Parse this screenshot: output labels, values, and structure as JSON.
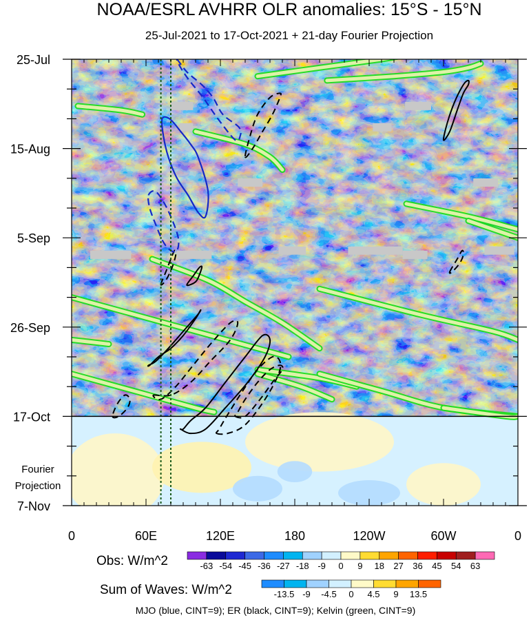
{
  "chart_data": {
    "type": "heatmap",
    "title": "NOAA/ESRL AVHRR OLR anomalies: 15°S - 15°N",
    "subtitle": "25-Jul-2021 to 17-Oct-2021 + 21-day Fourier Projection",
    "x_axis": {
      "ticks": [
        "0",
        "60E",
        "120E",
        "180",
        "120W",
        "60W",
        "0"
      ],
      "tick_lon": [
        0,
        60,
        120,
        180,
        240,
        300,
        360
      ],
      "range_deg": [
        0,
        360
      ]
    },
    "y_axis": {
      "ticks": [
        "25-Jul",
        "15-Aug",
        "5-Sep",
        "26-Sep",
        "17-Oct",
        "7-Nov"
      ],
      "tick_day": [
        0,
        21,
        42,
        63,
        84,
        105
      ],
      "range_days": [
        0,
        105
      ],
      "forecast_start_day": 84
    },
    "projection_label": [
      "Fourier",
      "Projection"
    ],
    "obs_legend": {
      "label": "Obs: W/m^2",
      "levels": [
        "-63",
        "-54",
        "-45",
        "-36",
        "-27",
        "-18",
        "-9",
        "0",
        "9",
        "18",
        "27",
        "36",
        "45",
        "54",
        "63"
      ],
      "colors": [
        "#8a2be2",
        "#0a0a9a",
        "#1e28d2",
        "#3c69e6",
        "#1e8cff",
        "#00b4f0",
        "#a0d2ff",
        "#d2f0ff",
        "#fffac8",
        "#ffdc32",
        "#ffa500",
        "#ff6400",
        "#ff1e00",
        "#c80000",
        "#a01e1e",
        "#ff69b4"
      ]
    },
    "waves_legend": {
      "label": "Sum of Waves: W/m^2",
      "levels": [
        "-13.5",
        "-9",
        "-4.5",
        "0",
        "4.5",
        "9",
        "13.5"
      ],
      "colors": [
        "#1e8cff",
        "#00b4f0",
        "#a0d2ff",
        "#d2f0ff",
        "#fffac8",
        "#ffdc32",
        "#ffa500",
        "#ff6400"
      ]
    },
    "wave_note": "MJO (blue, CINT=9); ER (black, CINT=9); Kelvin (green, CINT=9)",
    "wave_colors": {
      "mjo": "#1428c8",
      "er": "#000000",
      "kelvin": "#1edc1e",
      "missing": "#c8c8c8"
    },
    "reference_longitudes": [
      72,
      80
    ],
    "mjo_contours": [
      {
        "lon": [
          85,
          93,
          105,
          114,
          122,
          135,
          136,
          132,
          118,
          106,
          95,
          88,
          85
        ],
        "day": [
          0,
          3,
          6,
          9,
          13,
          16,
          18,
          19,
          14,
          9,
          5,
          2,
          0
        ],
        "sign": "neg"
      },
      {
        "lon": [
          73,
          79,
          88,
          96,
          102,
          110,
          108,
          102,
          94,
          85,
          78,
          74,
          73
        ],
        "day": [
          14,
          14,
          17,
          20,
          23,
          31,
          37,
          36,
          32,
          28,
          23,
          18,
          14
        ],
        "sign": "neg"
      },
      {
        "lon": [
          62,
          67,
          73,
          80,
          86,
          85,
          80,
          74,
          68,
          63,
          62
        ],
        "day": [
          32,
          31,
          33,
          37,
          42,
          45,
          45,
          43,
          39,
          35,
          32
        ],
        "sign": "neg"
      }
    ],
    "er_contours": [
      {
        "lon": [
          140,
          146,
          154,
          162,
          168,
          168,
          160,
          150,
          144,
          140
        ],
        "day": [
          23,
          21,
          17,
          13,
          9,
          8,
          9,
          13,
          18,
          23
        ],
        "sign": "pos"
      },
      {
        "lon": [
          300,
          305,
          311,
          316,
          320,
          320,
          316,
          309,
          303,
          300
        ],
        "day": [
          19,
          17,
          12,
          8,
          6,
          5,
          6,
          10,
          15,
          19
        ],
        "sign": "neg"
      },
      {
        "lon": [
          305,
          311,
          315,
          316,
          313,
          307,
          305
        ],
        "day": [
          50,
          47,
          45,
          46,
          48,
          50,
          50
        ],
        "sign": "pos"
      },
      {
        "lon": [
          72,
          76,
          80,
          83,
          84,
          81,
          76,
          72
        ],
        "day": [
          53,
          50,
          47,
          45,
          46,
          49,
          52,
          53
        ],
        "sign": "pos"
      },
      {
        "lon": [
          93,
          98,
          103,
          105,
          101,
          96,
          93
        ],
        "day": [
          53,
          51,
          49,
          49,
          52,
          53,
          53
        ],
        "sign": "neg"
      },
      {
        "lon": [
          62,
          68,
          78,
          90,
          102,
          104,
          100,
          90,
          80,
          70,
          63,
          62
        ],
        "day": [
          72,
          71,
          68,
          64,
          60,
          59,
          61,
          65,
          68,
          70,
          72,
          72
        ],
        "sign": "neg"
      },
      {
        "lon": [
          66,
          80,
          96,
          112,
          128,
          134,
          128,
          112,
          98,
          84,
          72,
          66
        ],
        "day": [
          79,
          79,
          76,
          71,
          66,
          62,
          62,
          67,
          72,
          77,
          80,
          79
        ],
        "sign": "pos"
      },
      {
        "lon": [
          88,
          96,
          108,
          124,
          142,
          156,
          160,
          154,
          140,
          124,
          108,
          96,
          90,
          88
        ],
        "day": [
          87,
          88,
          87,
          82,
          76,
          70,
          66,
          65,
          70,
          76,
          82,
          85,
          87,
          87
        ],
        "sign": "neg"
      },
      {
        "lon": [
          117,
          126,
          140,
          156,
          167,
          168,
          162,
          150,
          138,
          125,
          119,
          117
        ],
        "day": [
          88,
          88,
          86,
          80,
          74,
          71,
          70,
          73,
          78,
          84,
          87,
          88
        ],
        "sign": "pos"
      },
      {
        "lon": [
          132,
          140,
          152,
          162,
          170,
          168,
          160,
          150,
          140,
          134,
          132
        ],
        "day": [
          84,
          84,
          80,
          76,
          73,
          72,
          73,
          76,
          80,
          83,
          84
        ],
        "sign": "pos"
      },
      {
        "lon": [
          33,
          38,
          45,
          47,
          43,
          37,
          33
        ],
        "day": [
          84,
          84,
          82,
          80,
          79,
          81,
          84
        ],
        "sign": "pos"
      }
    ],
    "kelvin_bands": [
      {
        "lon": [
          150,
          200,
          250,
          270
        ],
        "day": [
          4,
          2,
          0,
          -1
        ]
      },
      {
        "lon": [
          206,
          260,
          300,
          320,
          330
        ],
        "day": [
          5,
          4,
          3,
          2,
          1
        ]
      },
      {
        "lon": [
          5,
          40,
          57
        ],
        "day": [
          11,
          12,
          13
        ]
      },
      {
        "lon": [
          100,
          140,
          160,
          170
        ],
        "day": [
          17,
          20,
          23,
          26
        ]
      },
      {
        "lon": [
          270,
          320,
          360
        ],
        "day": [
          34,
          37,
          40
        ]
      },
      {
        "lon": [
          320,
          360
        ],
        "day": [
          38,
          42
        ]
      },
      {
        "lon": [
          65,
          110,
          140,
          170,
          200
        ],
        "day": [
          47,
          52,
          57,
          62,
          68
        ]
      },
      {
        "lon": [
          0,
          50,
          100,
          150,
          175
        ],
        "day": [
          56,
          60,
          64,
          68,
          70
        ]
      },
      {
        "lon": [
          200,
          280,
          340,
          360
        ],
        "day": [
          54,
          60,
          64,
          66
        ]
      },
      {
        "lon": [
          0,
          30
        ],
        "day": [
          66,
          67
        ]
      },
      {
        "lon": [
          150,
          200,
          230
        ],
        "day": [
          73,
          75,
          77
        ]
      },
      {
        "lon": [
          0,
          50,
          100,
          115
        ],
        "day": [
          74,
          78,
          82,
          83
        ]
      },
      {
        "lon": [
          150,
          185,
          210
        ],
        "day": [
          74,
          77,
          80
        ]
      },
      {
        "lon": [
          200,
          250,
          300,
          360
        ],
        "day": [
          74,
          78,
          82,
          84
        ]
      },
      {
        "lon": [
          300,
          350,
          360
        ],
        "day": [
          82,
          84,
          84
        ]
      }
    ],
    "missing_segments": [
      {
        "lon": [
          80,
          98
        ],
        "day": 11
      },
      {
        "lon": [
          87,
          98
        ],
        "day": 16
      },
      {
        "lon": [
          243,
          258
        ],
        "day": 16
      },
      {
        "lon": [
          269,
          290
        ],
        "day": 11
      },
      {
        "lon": [
          134,
          154
        ],
        "day": 29
      },
      {
        "lon": [
          324,
          344
        ],
        "day": 29
      },
      {
        "lon": [
          15,
          48
        ],
        "day": 46
      },
      {
        "lon": [
          85,
          113
        ],
        "day": 46
      },
      {
        "lon": [
          167,
          189
        ],
        "day": 45
      },
      {
        "lon": [
          223,
          267
        ],
        "day": 45
      },
      {
        "lon": [
          267,
          287
        ],
        "day": 46
      },
      {
        "lon": [
          333,
          357
        ],
        "day": 45
      }
    ]
  }
}
